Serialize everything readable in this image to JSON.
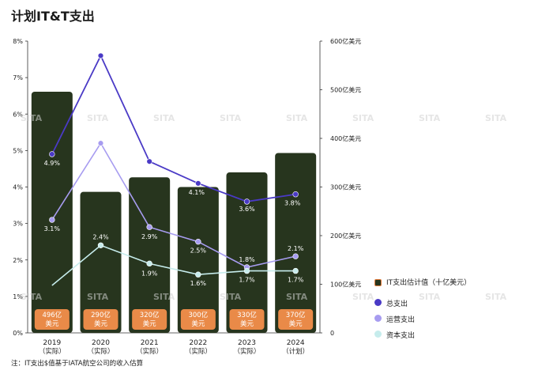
{
  "title": "计划IT&T支出",
  "note": "注：IT支出$值基于IATA航空公司的收入估算",
  "watermark": "SITA",
  "colors": {
    "bar": "#27351e",
    "bar_label_bg": "#e98a48",
    "total": "#4a3ac6",
    "operating": "#a79cf0",
    "capital": "#c6ecec"
  },
  "chart_data": {
    "type": "bar+line",
    "categories": [
      "2019\n（实际）",
      "2020\n（实际）",
      "2021\n（实际）",
      "2022\n（实际）",
      "2023\n（实际）",
      "2024\n（计划）"
    ],
    "bar_series": {
      "name": "IT支出估计值（十亿美元）",
      "axis": "right",
      "values": [
        496,
        290,
        320,
        300,
        330,
        370
      ],
      "labels": [
        "496亿\n美元",
        "290亿\n美元",
        "320亿\n美元",
        "300亿\n美元",
        "330亿\n美元",
        "370亿\n美元"
      ]
    },
    "line_series": [
      {
        "name": "总支出",
        "values": [
          4.9,
          7.6,
          4.7,
          4.1,
          3.6,
          3.8
        ],
        "labels": [
          "4.9%",
          "7.6%",
          "4.7%",
          "4.1%",
          "3.6%",
          "3.8%"
        ]
      },
      {
        "name": "运营支出",
        "values": [
          3.1,
          5.2,
          2.9,
          2.5,
          1.8,
          2.1
        ],
        "labels": [
          "3.1%",
          "5.2%",
          "2.9%",
          "2.5%",
          "1.8%",
          "2.1%"
        ]
      },
      {
        "name": "资本支出",
        "values": [
          1.3,
          2.4,
          1.9,
          1.6,
          1.7,
          1.7
        ],
        "labels": [
          "",
          "2.4%",
          "1.9%",
          "1.6%",
          "1.7%",
          "1.7%"
        ]
      }
    ],
    "left_axis": {
      "min": 0,
      "max": 8,
      "ticks": [
        "0%",
        "1%",
        "2%",
        "3%",
        "4%",
        "5%",
        "6%",
        "7%",
        "8%"
      ]
    },
    "right_axis": {
      "min": 0,
      "max": 600,
      "ticks": [
        "0",
        "100亿美元",
        "200亿美元",
        "300亿美元",
        "400亿美元",
        "500亿美元",
        "600亿美元"
      ]
    },
    "grid": false,
    "legend_position": "right"
  }
}
